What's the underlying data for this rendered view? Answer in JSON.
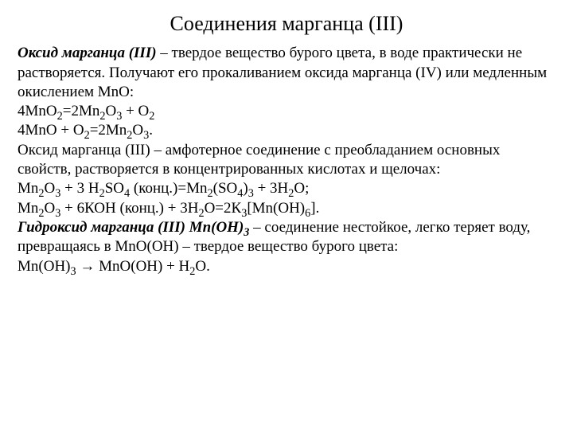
{
  "title_fontsize": 26,
  "body_fontsize": 19,
  "text_color": "#000000",
  "background_color": "#ffffff",
  "font_family": "Times New Roman",
  "title": "Соединения марганца (III)",
  "lead1": "Оксид марганца (III)",
  "p1a": " – твердое вещество бурого цвета, в воде практически не растворяется. Получают его прокаливанием оксида марганца (IV) или медленным окислением MnO:",
  "eq1_a": "4MnO",
  "eq1_b": "=2Mn",
  "eq1_c": "O",
  "eq1_d": " + O",
  "eq2_a": "4MnO + O",
  "eq2_b": "=2Mn",
  "eq2_c": "O",
  "eq2_d": ".",
  "p2": "Оксид марганца (III) – амфотерное соединение с преобладанием основных свойств, растворяется в концентрированных кислотах и щелочах:",
  "eq3_a": "Mn",
  "eq3_b": "O",
  "eq3_c": " + 3 H",
  "eq3_d": "SO",
  "eq3_e": " (конц.)=Mn",
  "eq3_f": "(SO",
  "eq3_g": ")",
  "eq3_h": " + 3H",
  "eq3_i": "O;",
  "eq4_a": "Mn",
  "eq4_b": "O",
  "eq4_c": " + 6КОН (конц.) + 3Н",
  "eq4_d": "О=2К",
  "eq4_e": "[Mn(OH)",
  "eq4_f": "].",
  "lead2": "Гидроксид марганца (III) Mn(OH)",
  "lead2_sub": "3",
  "p3": " – соединение нестойкое, легко теряет воду, превращаясь в MnO(OH) – твердое вещество бурого цвета:",
  "eq5_a": "Mn(OH)",
  "eq5_b": " → MnO(OH) + H",
  "eq5_c": "O.",
  "s2": "2",
  "s3": "3",
  "s4": "4",
  "s6": "6"
}
